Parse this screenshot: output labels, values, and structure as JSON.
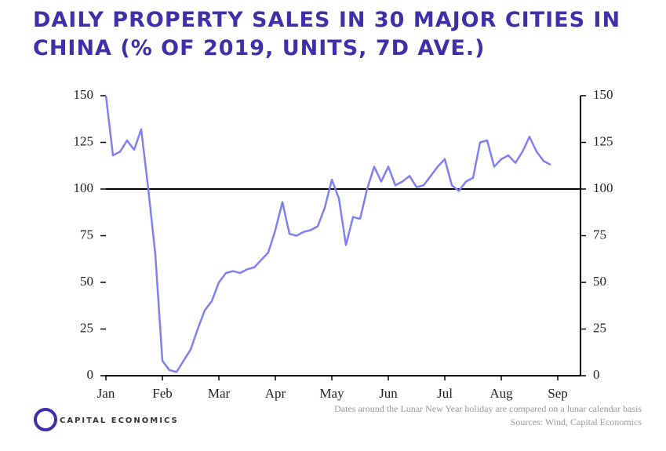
{
  "chart_data": {
    "type": "line",
    "title": "DAILY PROPERTY SALES IN 30 MAJOR CITIES IN CHINA (% OF 2019, UNITS, 7D AVE.)",
    "categories": [
      "Jan",
      null,
      null,
      null,
      null,
      null,
      null,
      null,
      "Feb",
      null,
      null,
      null,
      null,
      null,
      null,
      null,
      "Mar",
      null,
      null,
      null,
      null,
      null,
      null,
      null,
      "Apr",
      null,
      null,
      null,
      null,
      null,
      null,
      null,
      "May",
      null,
      null,
      null,
      null,
      null,
      null,
      null,
      "Jun",
      null,
      null,
      null,
      null,
      null,
      null,
      null,
      "Jul",
      null,
      null,
      null,
      null,
      null,
      null,
      null,
      "Aug",
      null,
      null,
      null,
      null,
      null,
      null,
      null,
      "Sep"
    ],
    "series": [
      {
        "name": "Daily property sales",
        "color": "#8080f0",
        "values": [
          150,
          118,
          120,
          126,
          121,
          132,
          100,
          65,
          8,
          3,
          2,
          8,
          14,
          25,
          35,
          40,
          50,
          55,
          56,
          55,
          57,
          58,
          62,
          66,
          78,
          93,
          76,
          75,
          77,
          78,
          80,
          90,
          105,
          95,
          70,
          85,
          84,
          100,
          112,
          104,
          112,
          102,
          104,
          107,
          101,
          102,
          107,
          112,
          116,
          102,
          99,
          104,
          106,
          125,
          126,
          112,
          116,
          118,
          114,
          120,
          128,
          120,
          115,
          113,
          null
        ]
      }
    ],
    "ylim": [
      0,
      150
    ],
    "yticks": [
      0,
      25,
      50,
      75,
      100,
      125,
      150
    ],
    "y2lim": [
      0,
      150
    ],
    "y2ticks": [
      0,
      25,
      50,
      75,
      100,
      125,
      150
    ],
    "reference_line": 100,
    "notes": [
      "Dates around the Lunar New Year holiday are compared on a lunar calendar basis",
      "Sources: Wind, Capital Economics"
    ],
    "logo": "CAPITAL ECONOMICS"
  }
}
